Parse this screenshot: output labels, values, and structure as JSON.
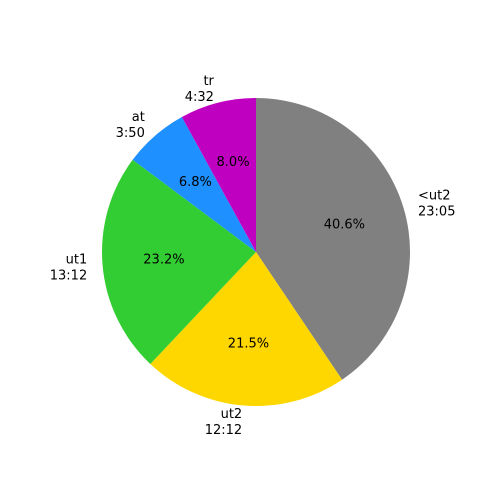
{
  "chart_data": {
    "type": "pie",
    "title": "",
    "start_angle_deg": 90,
    "direction": "clockwise",
    "slices": [
      {
        "label": "<ut2",
        "time": "23:05",
        "value": 40.6,
        "pct_label": "40.6%",
        "color": "#808080"
      },
      {
        "label": "ut2",
        "time": "12:12",
        "value": 21.5,
        "pct_label": "21.5%",
        "color": "#FFD700"
      },
      {
        "label": "ut1",
        "time": "13:12",
        "value": 23.2,
        "pct_label": "23.2%",
        "color": "#32CD32"
      },
      {
        "label": "at",
        "time": "3:50",
        "value": 6.8,
        "pct_label": "6.8%",
        "color": "#1E90FF"
      },
      {
        "label": "tr",
        "time": "4:32",
        "value": 8.0,
        "pct_label": "8.0%",
        "color": "#C000C0"
      }
    ]
  }
}
